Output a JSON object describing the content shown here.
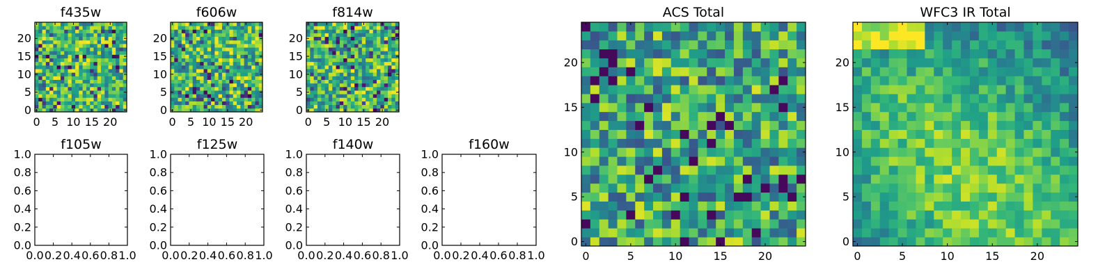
{
  "chart_data": [
    {
      "type": "heatmap",
      "title": "f435w",
      "xlim": [
        -0.5,
        24.5
      ],
      "ylim": [
        -0.5,
        24.5
      ],
      "xticks": [
        0,
        5,
        10,
        15,
        20
      ],
      "xtick_labels": [
        "0",
        "5",
        "10",
        "15",
        "20"
      ],
      "yticks": [
        0,
        5,
        10,
        15,
        20
      ],
      "ytick_labels": [
        "0",
        "5",
        "10",
        "15",
        "20"
      ],
      "grid_size": 25,
      "colormap": "viridis",
      "values": []
    },
    {
      "type": "heatmap",
      "title": "f606w",
      "xlim": [
        -0.5,
        24.5
      ],
      "ylim": [
        -0.5,
        24.5
      ],
      "xticks": [
        0,
        5,
        10,
        15,
        20
      ],
      "xtick_labels": [
        "0",
        "5",
        "10",
        "15",
        "20"
      ],
      "yticks": [
        0,
        5,
        10,
        15,
        20
      ],
      "ytick_labels": [
        "0",
        "5",
        "10",
        "15",
        "20"
      ],
      "grid_size": 25,
      "colormap": "viridis",
      "values": []
    },
    {
      "type": "heatmap",
      "title": "f814w",
      "xlim": [
        -0.5,
        24.5
      ],
      "ylim": [
        -0.5,
        24.5
      ],
      "xticks": [
        0,
        5,
        10,
        15,
        20
      ],
      "xtick_labels": [
        "0",
        "5",
        "10",
        "15",
        "20"
      ],
      "yticks": [
        0,
        5,
        10,
        15,
        20
      ],
      "ytick_labels": [
        "0",
        "5",
        "10",
        "15",
        "20"
      ],
      "grid_size": 25,
      "colormap": "viridis",
      "values": []
    },
    {
      "type": "empty",
      "title": "f105w",
      "xlim": [
        0,
        1
      ],
      "ylim": [
        0,
        1
      ],
      "xticks": [
        0,
        0.2,
        0.4,
        0.6,
        0.8,
        1.0
      ],
      "xtick_labels": [
        "0.0",
        "0.2",
        "0.4",
        "0.6",
        "0.8",
        "1.0"
      ],
      "yticks": [
        0,
        0.2,
        0.4,
        0.6,
        0.8,
        1.0
      ],
      "ytick_labels": [
        "0.0",
        "0.2",
        "0.4",
        "0.6",
        "0.8",
        "1.0"
      ]
    },
    {
      "type": "empty",
      "title": "f125w",
      "xlim": [
        0,
        1
      ],
      "ylim": [
        0,
        1
      ],
      "xticks": [
        0,
        0.2,
        0.4,
        0.6,
        0.8,
        1.0
      ],
      "xtick_labels": [
        "0.0",
        "0.2",
        "0.4",
        "0.6",
        "0.8",
        "1.0"
      ],
      "yticks": [
        0,
        0.2,
        0.4,
        0.6,
        0.8,
        1.0
      ],
      "ytick_labels": [
        "0.0",
        "0.2",
        "0.4",
        "0.6",
        "0.8",
        "1.0"
      ]
    },
    {
      "type": "empty",
      "title": "f140w",
      "xlim": [
        0,
        1
      ],
      "ylim": [
        0,
        1
      ],
      "xticks": [
        0,
        0.2,
        0.4,
        0.6,
        0.8,
        1.0
      ],
      "xtick_labels": [
        "0.0",
        "0.2",
        "0.4",
        "0.6",
        "0.8",
        "1.0"
      ],
      "yticks": [
        0,
        0.2,
        0.4,
        0.6,
        0.8,
        1.0
      ],
      "ytick_labels": [
        "0.0",
        "0.2",
        "0.4",
        "0.6",
        "0.8",
        "1.0"
      ]
    },
    {
      "type": "empty",
      "title": "f160w",
      "xlim": [
        0,
        1
      ],
      "ylim": [
        0,
        1
      ],
      "xticks": [
        0,
        0.2,
        0.4,
        0.6,
        0.8,
        1.0
      ],
      "xtick_labels": [
        "0.0",
        "0.2",
        "0.4",
        "0.6",
        "0.8",
        "1.0"
      ],
      "yticks": [
        0,
        0.2,
        0.4,
        0.6,
        0.8,
        1.0
      ],
      "ytick_labels": [
        "0.0",
        "0.2",
        "0.4",
        "0.6",
        "0.8",
        "1.0"
      ]
    },
    {
      "type": "heatmap",
      "title": "ACS Total",
      "xlim": [
        -0.5,
        24.5
      ],
      "ylim": [
        -0.5,
        24.5
      ],
      "xticks": [
        0,
        5,
        10,
        15,
        20
      ],
      "xtick_labels": [
        "0",
        "5",
        "10",
        "15",
        "20"
      ],
      "yticks": [
        0,
        5,
        10,
        15,
        20
      ],
      "ytick_labels": [
        "0",
        "5",
        "10",
        "15",
        "20"
      ],
      "grid_size": 25,
      "colormap": "viridis",
      "values": []
    },
    {
      "type": "heatmap",
      "title": "WFC3 IR Total",
      "xlim": [
        -0.5,
        24.5
      ],
      "ylim": [
        -0.5,
        24.5
      ],
      "xticks": [
        0,
        5,
        10,
        15,
        20
      ],
      "xtick_labels": [
        "0",
        "5",
        "10",
        "15",
        "20"
      ],
      "yticks": [
        0,
        5,
        10,
        15,
        20
      ],
      "ytick_labels": [
        "0",
        "5",
        "10",
        "15",
        "20"
      ],
      "grid_size": 25,
      "colormap": "viridis",
      "values": []
    }
  ]
}
